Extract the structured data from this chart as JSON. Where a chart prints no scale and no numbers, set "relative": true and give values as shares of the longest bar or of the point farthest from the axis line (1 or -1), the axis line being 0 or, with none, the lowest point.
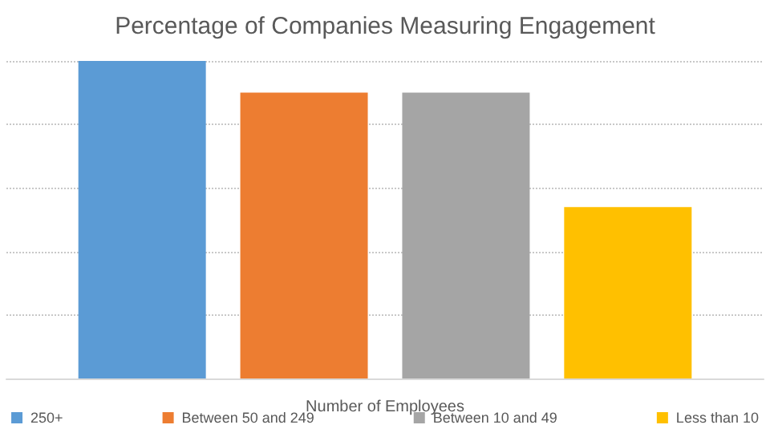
{
  "chart_data": {
    "type": "bar",
    "title": "Percentage of Companies Measuring Engagement",
    "xlabel": "Number of Employees",
    "categories": [
      null
    ],
    "relative": true,
    "grid": "y",
    "legend": "bottom",
    "series": [
      {
        "name": "250+",
        "color": "#5b9bd5",
        "values": [
          1
        ]
      },
      {
        "name": "Between 50 and 249",
        "color": "#ed7d31",
        "values": [
          0.9
        ]
      },
      {
        "name": "Between 10 and 49",
        "color": "#a5a5a5",
        "values": [
          0.9
        ]
      },
      {
        "name": "Less than 10",
        "color": "#ffc000",
        "values": [
          0.54
        ]
      }
    ]
  }
}
